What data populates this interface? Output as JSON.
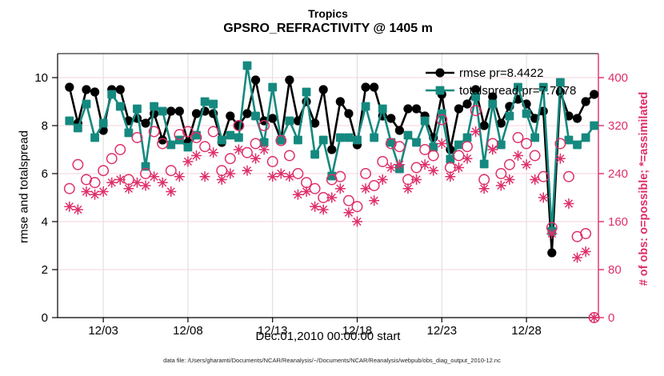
{
  "header": {
    "title": "Tropics",
    "subtitle": "GPSRO_REFRACTIVITY @ 1405 m"
  },
  "axes": {
    "xlabel": "Dec.01,2010 00:00:00 start",
    "ylabel_left": "rmse and totalspread",
    "ylabel_right": "# of obs: o=possible; *=assimilated"
  },
  "legend": {
    "items": [
      {
        "label": "rmse pr=8.4422",
        "marker": "circle",
        "color": "#000000"
      },
      {
        "label": "totalspread pr=7.7078",
        "marker": "square",
        "color": "#15897f"
      }
    ]
  },
  "footer": {
    "text": "data file: /Users/gharamti/Documents/NCAR/Reanalysis/~/Documents/NCAR/Reanalysis/webpub/obs_diag_output_2010-12.nc"
  },
  "colors": {
    "rmse": "#000000",
    "totalspread": "#15897f",
    "obs_pink": "#de2f68",
    "grid_pink": "#f6d5e0",
    "grid_gray": "#dbdbdb"
  },
  "chart_data": {
    "type": "line",
    "title": "Tropics",
    "subtitle": "GPSRO_REFRACTIVITY @ 1405 m",
    "xlabel": "Dec.01,2010 00:00:00 start",
    "ylabel_left": "rmse and totalspread",
    "ylabel_right": "# of obs: o=possible; *=assimilated",
    "x_start_day": 1.0,
    "x_step_days": 0.5,
    "xlim": [
      0.3,
      32.25
    ],
    "ylim_left": [
      0,
      11
    ],
    "ylim_right": [
      0,
      440
    ],
    "xticks": [
      {
        "day": 3,
        "label": "12/03"
      },
      {
        "day": 8,
        "label": "12/08"
      },
      {
        "day": 13,
        "label": "12/13"
      },
      {
        "day": 18,
        "label": "12/18"
      },
      {
        "day": 23,
        "label": "12/23"
      },
      {
        "day": 28,
        "label": "12/28"
      }
    ],
    "yticks_left": [
      0,
      2,
      4,
      6,
      8,
      10
    ],
    "yticks_right": [
      0,
      80,
      160,
      240,
      320,
      400
    ],
    "grid": true,
    "legend_position": "top-right",
    "series": [
      {
        "name": "rmse",
        "axis": "left",
        "marker": "circle-filled",
        "line": true,
        "mean_label": "8.4422",
        "values": [
          9.6,
          8.1,
          9.5,
          9.4,
          7.8,
          9.5,
          9.5,
          8.2,
          8.3,
          8.1,
          8.5,
          7.4,
          8.6,
          8.6,
          7.3,
          8.5,
          8.6,
          8.5,
          7.3,
          8.4,
          8.0,
          8.5,
          9.9,
          8.2,
          8.3,
          7.4,
          9.9,
          8.2,
          9.0,
          8.1,
          9.5,
          7.0,
          9.0,
          8.5,
          7.2,
          9.6,
          9.6,
          8.4,
          8.3,
          7.8,
          8.7,
          8.7,
          8.4,
          7.5,
          9.3,
          7.0,
          8.7,
          8.9,
          9.5,
          8.0,
          9.2,
          8.1,
          8.8,
          9.1,
          8.9,
          8.3,
          8.6,
          2.7,
          9.4,
          8.4,
          8.3,
          9.0,
          9.3
        ]
      },
      {
        "name": "totalspread",
        "axis": "left",
        "marker": "square-filled",
        "line": true,
        "mean_label": "7.7078",
        "values": [
          8.2,
          7.9,
          8.9,
          7.5,
          8.1,
          9.3,
          8.8,
          7.7,
          8.7,
          6.3,
          8.8,
          8.6,
          7.2,
          7.4,
          7.1,
          7.6,
          9.0,
          8.9,
          7.4,
          7.6,
          7.5,
          10.5,
          8.4,
          7.3,
          9.6,
          7.4,
          8.2,
          7.4,
          9.4,
          6.8,
          7.4,
          5.9,
          7.5,
          7.5,
          7.4,
          8.8,
          7.5,
          8.7,
          7.3,
          6.2,
          7.6,
          7.3,
          8.2,
          7.1,
          8.5,
          6.6,
          7.2,
          7.5,
          9.2,
          6.4,
          8.9,
          7.2,
          8.4,
          9.6,
          8.5,
          7.5,
          9.6,
          3.6,
          9.8,
          7.4,
          7.2,
          7.5,
          8.0
        ]
      },
      {
        "name": "possible",
        "axis": "right",
        "marker": "circle-open",
        "line": false,
        "values": [
          215,
          255,
          230,
          225,
          245,
          265,
          280,
          230,
          300,
          240,
          310,
          290,
          245,
          305,
          310,
          300,
          285,
          310,
          245,
          265,
          320,
          275,
          290,
          320,
          260,
          295,
          270,
          240,
          225,
          215,
          200,
          230,
          235,
          195,
          185,
          240,
          220,
          260,
          290,
          285,
          230,
          250,
          280,
          270,
          330,
          250,
          270,
          285,
          345,
          230,
          290,
          240,
          255,
          300,
          290,
          270,
          235,
          150,
          290,
          235,
          135,
          140,
          0
        ]
      },
      {
        "name": "assimilated",
        "axis": "right",
        "marker": "asterisk",
        "line": false,
        "values": [
          185,
          180,
          210,
          205,
          210,
          225,
          230,
          215,
          225,
          220,
          235,
          225,
          210,
          235,
          260,
          270,
          235,
          275,
          230,
          240,
          280,
          245,
          265,
          280,
          235,
          240,
          235,
          205,
          210,
          185,
          180,
          200,
          215,
          175,
          160,
          215,
          195,
          230,
          250,
          255,
          215,
          230,
          255,
          245,
          290,
          235,
          250,
          265,
          310,
          215,
          280,
          220,
          230,
          270,
          255,
          230,
          200,
          140,
          265,
          190,
          100,
          110,
          0
        ]
      }
    ]
  }
}
